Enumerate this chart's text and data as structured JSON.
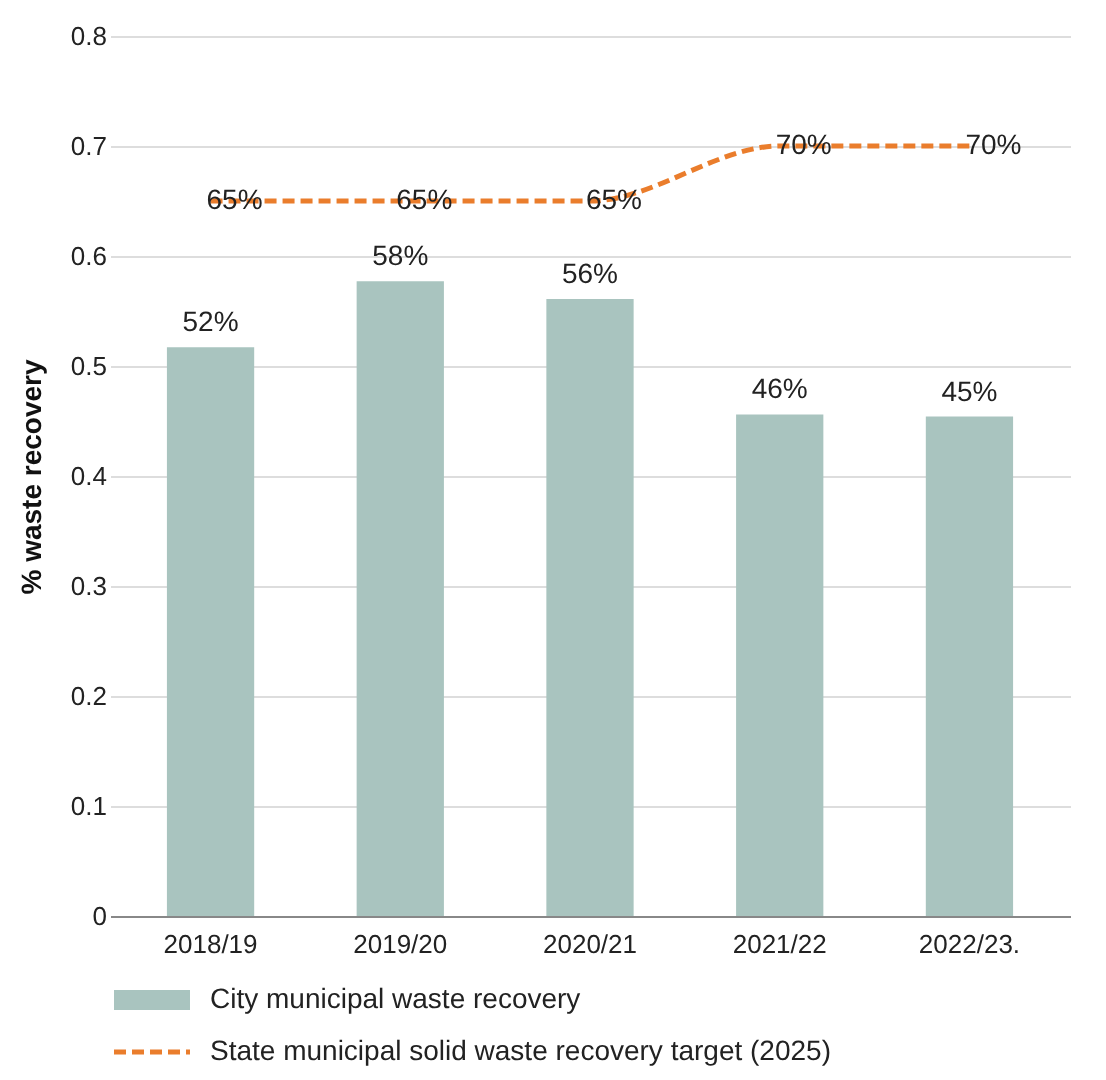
{
  "chart_data": {
    "type": "bar",
    "ylabel": "% waste recovery",
    "categories": [
      "2018/19",
      "2019/20",
      "2020/21",
      "2021/22",
      "2022/23."
    ],
    "series": [
      {
        "name": "City municipal waste recovery",
        "color": "#a9c4bf",
        "values": [
          0.517,
          0.577,
          0.561,
          0.456,
          0.454
        ],
        "value_labels": [
          "52%",
          "58%",
          "56%",
          "46%",
          "45%"
        ]
      },
      {
        "name": "State municipal solid waste recovery target (2025)",
        "type": "line",
        "color": "#ea7d2c",
        "line_style": "dashed",
        "values": [
          0.65,
          0.65,
          0.65,
          0.7,
          0.7
        ],
        "value_labels": [
          "65%",
          "65%",
          "65%",
          "70%",
          "70%"
        ]
      }
    ],
    "ylim": [
      0,
      0.8
    ],
    "yticks": [
      0,
      0.1,
      0.2,
      0.3,
      0.4,
      0.5,
      0.6,
      0.7,
      0.8
    ],
    "grid": "y",
    "legend": "bottom"
  }
}
